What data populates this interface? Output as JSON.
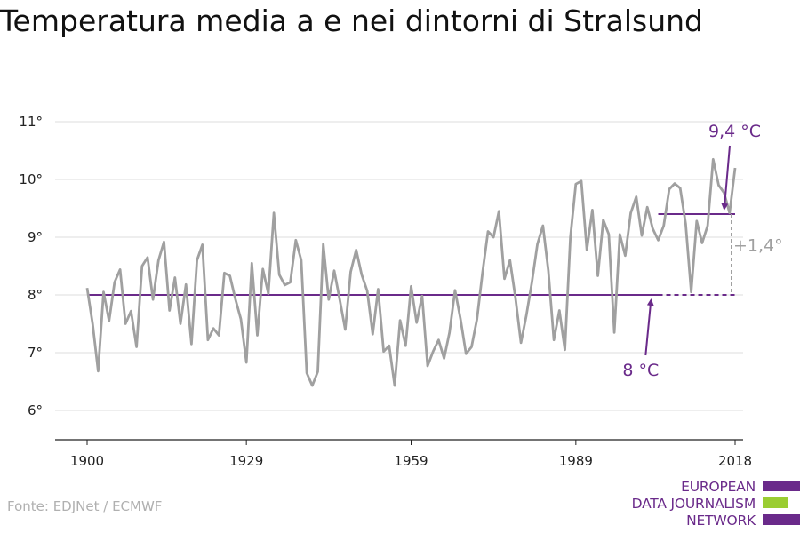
{
  "title": "Temperatura media a e nei dintorni di Stralsund",
  "source": "Fonte: EDJNet / ECMWF",
  "logo": {
    "lines": [
      "EUROPEAN",
      "DATA JOURNALISM",
      "NETWORK"
    ]
  },
  "colors": {
    "series": "#a0a0a0",
    "accent": "#6a2a8a",
    "delta": "#a0a0a0",
    "grid": "#dddddd",
    "logo_green": "#9acd32"
  },
  "chart_data": {
    "type": "line",
    "xlim": [
      1900,
      2018
    ],
    "ylim": [
      6,
      11
    ],
    "yticks": [
      6,
      7,
      8,
      9,
      10,
      11
    ],
    "ytick_labels": [
      "6°",
      "7°",
      "8°",
      "9°",
      "10°",
      "11°"
    ],
    "xticks": [
      1900,
      1929,
      1959,
      1989,
      2018
    ],
    "xtick_labels": [
      "1900",
      "1929",
      "1959",
      "1989",
      "2018"
    ],
    "grid": true,
    "series": [
      {
        "x": [
          1900,
          1901,
          1902,
          1903,
          1904,
          1905,
          1906,
          1907,
          1908,
          1909,
          1910,
          1911,
          1912,
          1913,
          1914,
          1915,
          1916,
          1917,
          1918,
          1919,
          1920,
          1921,
          1922,
          1923,
          1924,
          1925,
          1926,
          1927,
          1928,
          1929,
          1930,
          1931,
          1932,
          1933,
          1934,
          1935,
          1936,
          1937,
          1938,
          1939,
          1940,
          1941,
          1942,
          1943,
          1944,
          1945,
          1946,
          1947,
          1948,
          1949,
          1950,
          1951,
          1952,
          1953,
          1954,
          1955,
          1956,
          1957,
          1958,
          1959,
          1960,
          1961,
          1962,
          1963,
          1964,
          1965,
          1966,
          1967,
          1968,
          1969,
          1970,
          1971,
          1972,
          1973,
          1974,
          1975,
          1976,
          1977,
          1978,
          1979,
          1980,
          1981,
          1982,
          1983,
          1984,
          1985,
          1986,
          1987,
          1988,
          1989,
          1990,
          1991,
          1992,
          1993,
          1994,
          1995,
          1996,
          1997,
          1998,
          1999,
          2000,
          2001,
          2002,
          2003,
          2004,
          2005,
          2006,
          2007,
          2008,
          2009,
          2010,
          2011,
          2012,
          2013,
          2014,
          2015,
          2016,
          2017,
          2018
        ],
        "values": [
          8.12,
          7.5,
          6.68,
          8.05,
          7.55,
          8.22,
          8.44,
          7.5,
          7.72,
          7.1,
          8.5,
          8.65,
          7.92,
          8.6,
          8.92,
          7.73,
          8.3,
          7.5,
          8.18,
          7.15,
          8.6,
          8.87,
          7.22,
          7.42,
          7.3,
          8.38,
          8.33,
          7.93,
          7.58,
          6.83,
          8.55,
          7.3,
          8.45,
          8.02,
          9.42,
          8.35,
          8.17,
          8.22,
          8.95,
          8.6,
          6.65,
          6.43,
          6.67,
          8.88,
          7.92,
          8.42,
          7.92,
          7.4,
          8.4,
          8.78,
          8.35,
          8.07,
          7.32,
          8.1,
          7.02,
          7.12,
          6.43,
          7.56,
          7.12,
          8.15,
          7.52,
          7.98,
          6.77,
          7.02,
          7.22,
          6.9,
          7.35,
          8.08,
          7.58,
          6.98,
          7.1,
          7.58,
          8.38,
          9.1,
          9.0,
          9.45,
          8.28,
          8.6,
          7.95,
          7.17,
          7.65,
          8.22,
          8.88,
          9.2,
          8.42,
          7.22,
          7.73,
          7.05,
          9.0,
          9.92,
          9.97,
          8.78,
          9.47,
          8.33,
          9.3,
          9.05,
          7.35,
          9.05,
          8.68,
          9.42,
          9.7,
          9.03,
          9.52,
          9.15,
          8.95,
          9.2,
          9.83,
          9.93,
          9.85,
          9.23,
          8.05,
          9.28,
          8.9,
          9.2,
          10.35,
          9.9,
          9.77,
          9.42,
          10.2
        ]
      }
    ],
    "reference": {
      "baseline": 8.0,
      "recent": 9.4,
      "delta_label": "+1,4°"
    },
    "annotations": [
      {
        "text": "9,4 °C",
        "value": 9.4,
        "year": 2017
      },
      {
        "text": "8 °C",
        "value": 8.0,
        "year": 2003
      }
    ]
  }
}
